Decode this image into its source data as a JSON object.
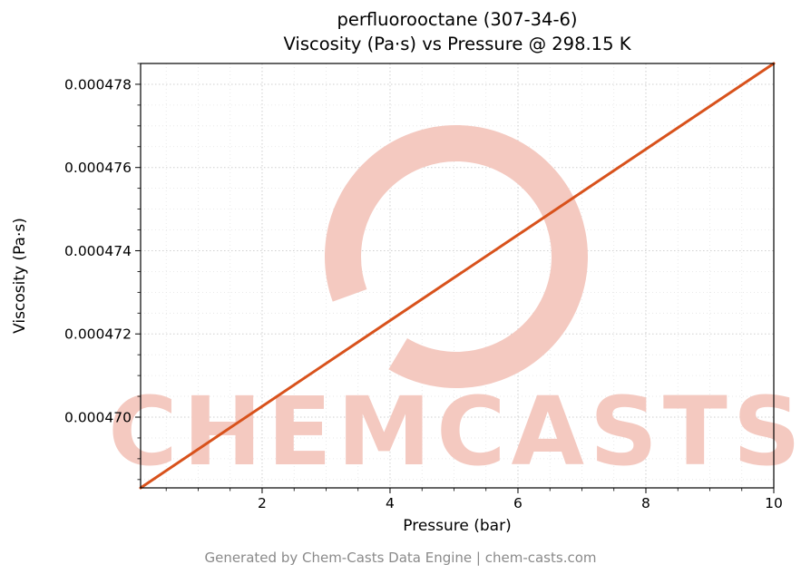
{
  "title": {
    "line1": "perfluorooctane (307-34-6)",
    "line2": "Viscosity (Pa·s) vs Pressure @ 298.15 K"
  },
  "axes": {
    "xlabel": "Pressure (bar)",
    "ylabel": "Viscosity (Pa·s)"
  },
  "watermark": {
    "text": "CHEMCASTS"
  },
  "footer": {
    "text": "Generated by Chem-Casts Data Engine | chem-casts.com"
  },
  "colors": {
    "line": "#d8521c",
    "watermark": "#f4c9c0",
    "grid_major": "#cfcfcf",
    "grid_minor": "#e4e4e4",
    "spine": "#000000",
    "tick_label": "#000000"
  },
  "chart_data": {
    "type": "line",
    "title": "perfluorooctane (307-34-6) — Viscosity (Pa·s) vs Pressure @ 298.15 K",
    "xlabel": "Pressure (bar)",
    "ylabel": "Viscosity (Pa·s)",
    "xlim": [
      0.1,
      10
    ],
    "ylim": [
      0.0004683,
      0.0004785
    ],
    "xticks": [
      2,
      4,
      6,
      8,
      10
    ],
    "xtick_labels": [
      "2",
      "4",
      "6",
      "8",
      "10"
    ],
    "yticks": [
      0.00047,
      0.000472,
      0.000474,
      0.000476,
      0.000478
    ],
    "ytick_labels": [
      "0.000470",
      "0.000472",
      "0.000474",
      "0.000476",
      "0.000478"
    ],
    "xminor_step": 0.5,
    "yminor_step": 5e-07,
    "grid": true,
    "legend": "none",
    "series": [
      {
        "name": "viscosity",
        "x": [
          0.1,
          1,
          2,
          3,
          4,
          5,
          6,
          7,
          8,
          9,
          10
        ],
        "y": [
          0.0004683,
          0.00046923,
          0.00047026,
          0.00047129,
          0.00047232,
          0.00047335,
          0.00047438,
          0.00047541,
          0.00047644,
          0.00047747,
          0.0004785
        ]
      }
    ]
  }
}
